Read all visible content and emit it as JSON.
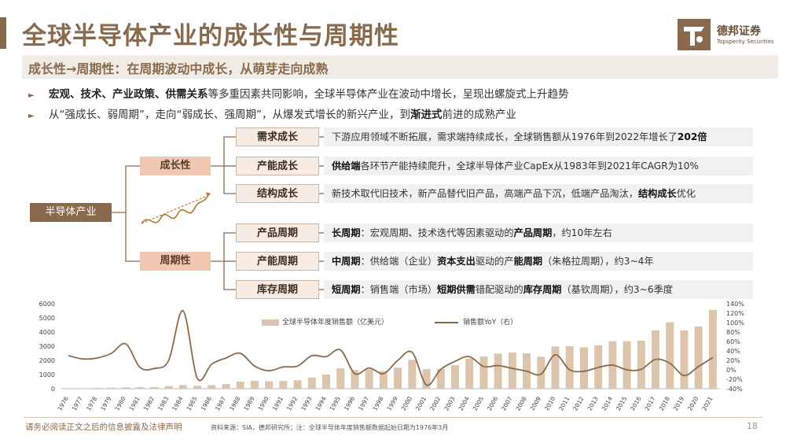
{
  "title": "全球半导体产业的成长性与周期性",
  "logo": {
    "name": "德邦证券",
    "english": "Topsperity Securities"
  },
  "subtitle": "成长性→周期性：在周期波动中成长，从萌芽走向成熟",
  "bullets": [
    {
      "bold": "宏观、技术、产业政策、供需关系",
      "rest": "等多重因素共同影响，全球半导体产业在波动中增长，呈现出螺旋式上升趋势"
    },
    {
      "pre": "从“强成长、弱周期”，走向“弱成长、强周期”，从爆发式增长的新兴产业，到",
      "bold": "渐进式",
      "post": "前进的成熟产业"
    }
  ],
  "tree": {
    "root": "半导体产业",
    "growth": {
      "label": "成长性",
      "items": [
        {
          "label": "需求成长",
          "pre": "下游应用领域不断拓展，需求端持续成长，全球销售额从1976年到2022年增长了",
          "bold": "202倍",
          "post": ""
        },
        {
          "label": "产能成长",
          "pre": "",
          "bold": "供给端",
          "post": "各环节产能持续爬升，全球半导体产业CapEx从1983年到2021年CAGR为10%"
        },
        {
          "label": "结构成长",
          "pre": "新技术取代旧技术，新产品替代旧产品，高端产品下沉，低端产品淘汰，",
          "bold": "结构成长",
          "post": "优化"
        }
      ]
    },
    "cycle": {
      "label": "周期性",
      "items": [
        {
          "label": "产品周期",
          "parts": [
            {
              "b": "长周期"
            },
            {
              "t": "：宏观周期、技术迭代等因素驱动的"
            },
            {
              "b": "产品周期"
            },
            {
              "t": "，约10年左右"
            }
          ]
        },
        {
          "label": "产能周期",
          "parts": [
            {
              "b": "中周期"
            },
            {
              "t": "：供给端（企业）"
            },
            {
              "b": "资本支出"
            },
            {
              "t": "驱动的产"
            },
            {
              "b": "能周期"
            },
            {
              "t": "（朱格拉周期），约3~4年"
            }
          ]
        },
        {
          "label": "库存周期",
          "parts": [
            {
              "b": "短周期"
            },
            {
              "t": "：销售端（市场）"
            },
            {
              "b": "短期供需"
            },
            {
              "t": "错配驱动的"
            },
            {
              "b": "库存周期"
            },
            {
              "t": "（基钦周期），约3~6季度"
            }
          ]
        }
      ]
    }
  },
  "chart_data": {
    "type": "bar",
    "title": "",
    "categories": [
      "1976",
      "1977",
      "1978",
      "1979",
      "1980",
      "1981",
      "1982",
      "1983",
      "1984",
      "1985",
      "1986",
      "1987",
      "1988",
      "1989",
      "1990",
      "1991",
      "1992",
      "1993",
      "1994",
      "1995",
      "1996",
      "1997",
      "1998",
      "1999",
      "2000",
      "2001",
      "2002",
      "2003",
      "2004",
      "2005",
      "2006",
      "2007",
      "2008",
      "2009",
      "2010",
      "2011",
      "2012",
      "2013",
      "2014",
      "2015",
      "2016",
      "2017",
      "2018",
      "2019",
      "2020",
      "2021"
    ],
    "series": [
      {
        "name": "全球半导体年度销售额（亿美元）",
        "type": "bar",
        "axis": "left",
        "color": "#dcc4ad",
        "values": [
          30,
          40,
          50,
          70,
          100,
          110,
          120,
          180,
          260,
          210,
          260,
          330,
          500,
          550,
          520,
          550,
          600,
          780,
          1000,
          1440,
          1320,
          1370,
          1250,
          1490,
          2040,
          1390,
          1410,
          1660,
          2130,
          2270,
          2480,
          2560,
          2500,
          2260,
          2980,
          3000,
          2920,
          3060,
          3350,
          3350,
          3390,
          4120,
          4690,
          4120,
          4400,
          5560
        ]
      },
      {
        "name": "销售额YoY（右）",
        "type": "line",
        "axis": "right",
        "color": "#8a6a4d",
        "values": [
          0.3,
          0.23,
          0.25,
          0.35,
          0.55,
          0.05,
          0.03,
          0.2,
          1.25,
          -0.18,
          0.12,
          0.25,
          0.35,
          0.08,
          -0.02,
          0.06,
          0.08,
          0.3,
          0.28,
          0.42,
          -0.08,
          0.04,
          -0.08,
          0.2,
          0.37,
          -0.32,
          0.01,
          0.18,
          0.28,
          0.07,
          0.09,
          0.03,
          -0.03,
          -0.09,
          0.32,
          0.0,
          -0.03,
          0.05,
          0.1,
          0.0,
          0.01,
          0.22,
          0.14,
          -0.12,
          0.07,
          0.26
        ]
      }
    ],
    "y_left": {
      "min": 0,
      "max": 6000,
      "ticks": [
        0,
        1000,
        2000,
        3000,
        4000,
        5000,
        6000
      ]
    },
    "y_right": {
      "min": -0.4,
      "max": 1.4,
      "ticks": [
        "-40%",
        "-20%",
        "0%",
        "20%",
        "40%",
        "60%",
        "80%",
        "100%",
        "120%",
        "140%"
      ]
    },
    "grid": false,
    "legend": "top"
  },
  "footer": {
    "disclaimer": "请务必阅读正文之后的信息披露及法律声明",
    "source": "资料来源：SIA，德邦研究所；注：全球半导体年度销售额数据起始日期为1976年3月",
    "page": "18"
  }
}
